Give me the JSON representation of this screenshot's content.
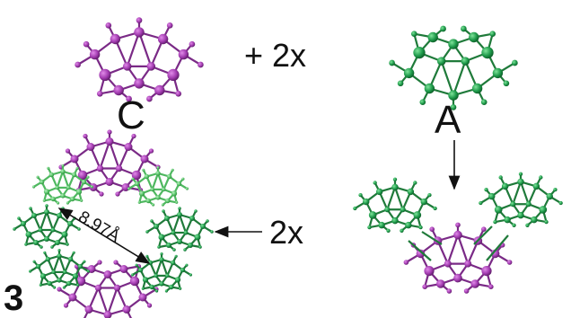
{
  "labels": {
    "cluster_c": "C",
    "cluster_a": "A",
    "plus_two_x": "+ 2x",
    "two_x": "2x",
    "compound_number": "3",
    "distance": "8.97Å"
  },
  "colors": {
    "purple_atom": "#a23bb0",
    "purple_bond": "#7a2a86",
    "green_atom": "#1e9a4a",
    "green_bond": "#1f7a3a",
    "light_green": "#55c266",
    "arrow": "#111111",
    "background": "#ffffff"
  }
}
